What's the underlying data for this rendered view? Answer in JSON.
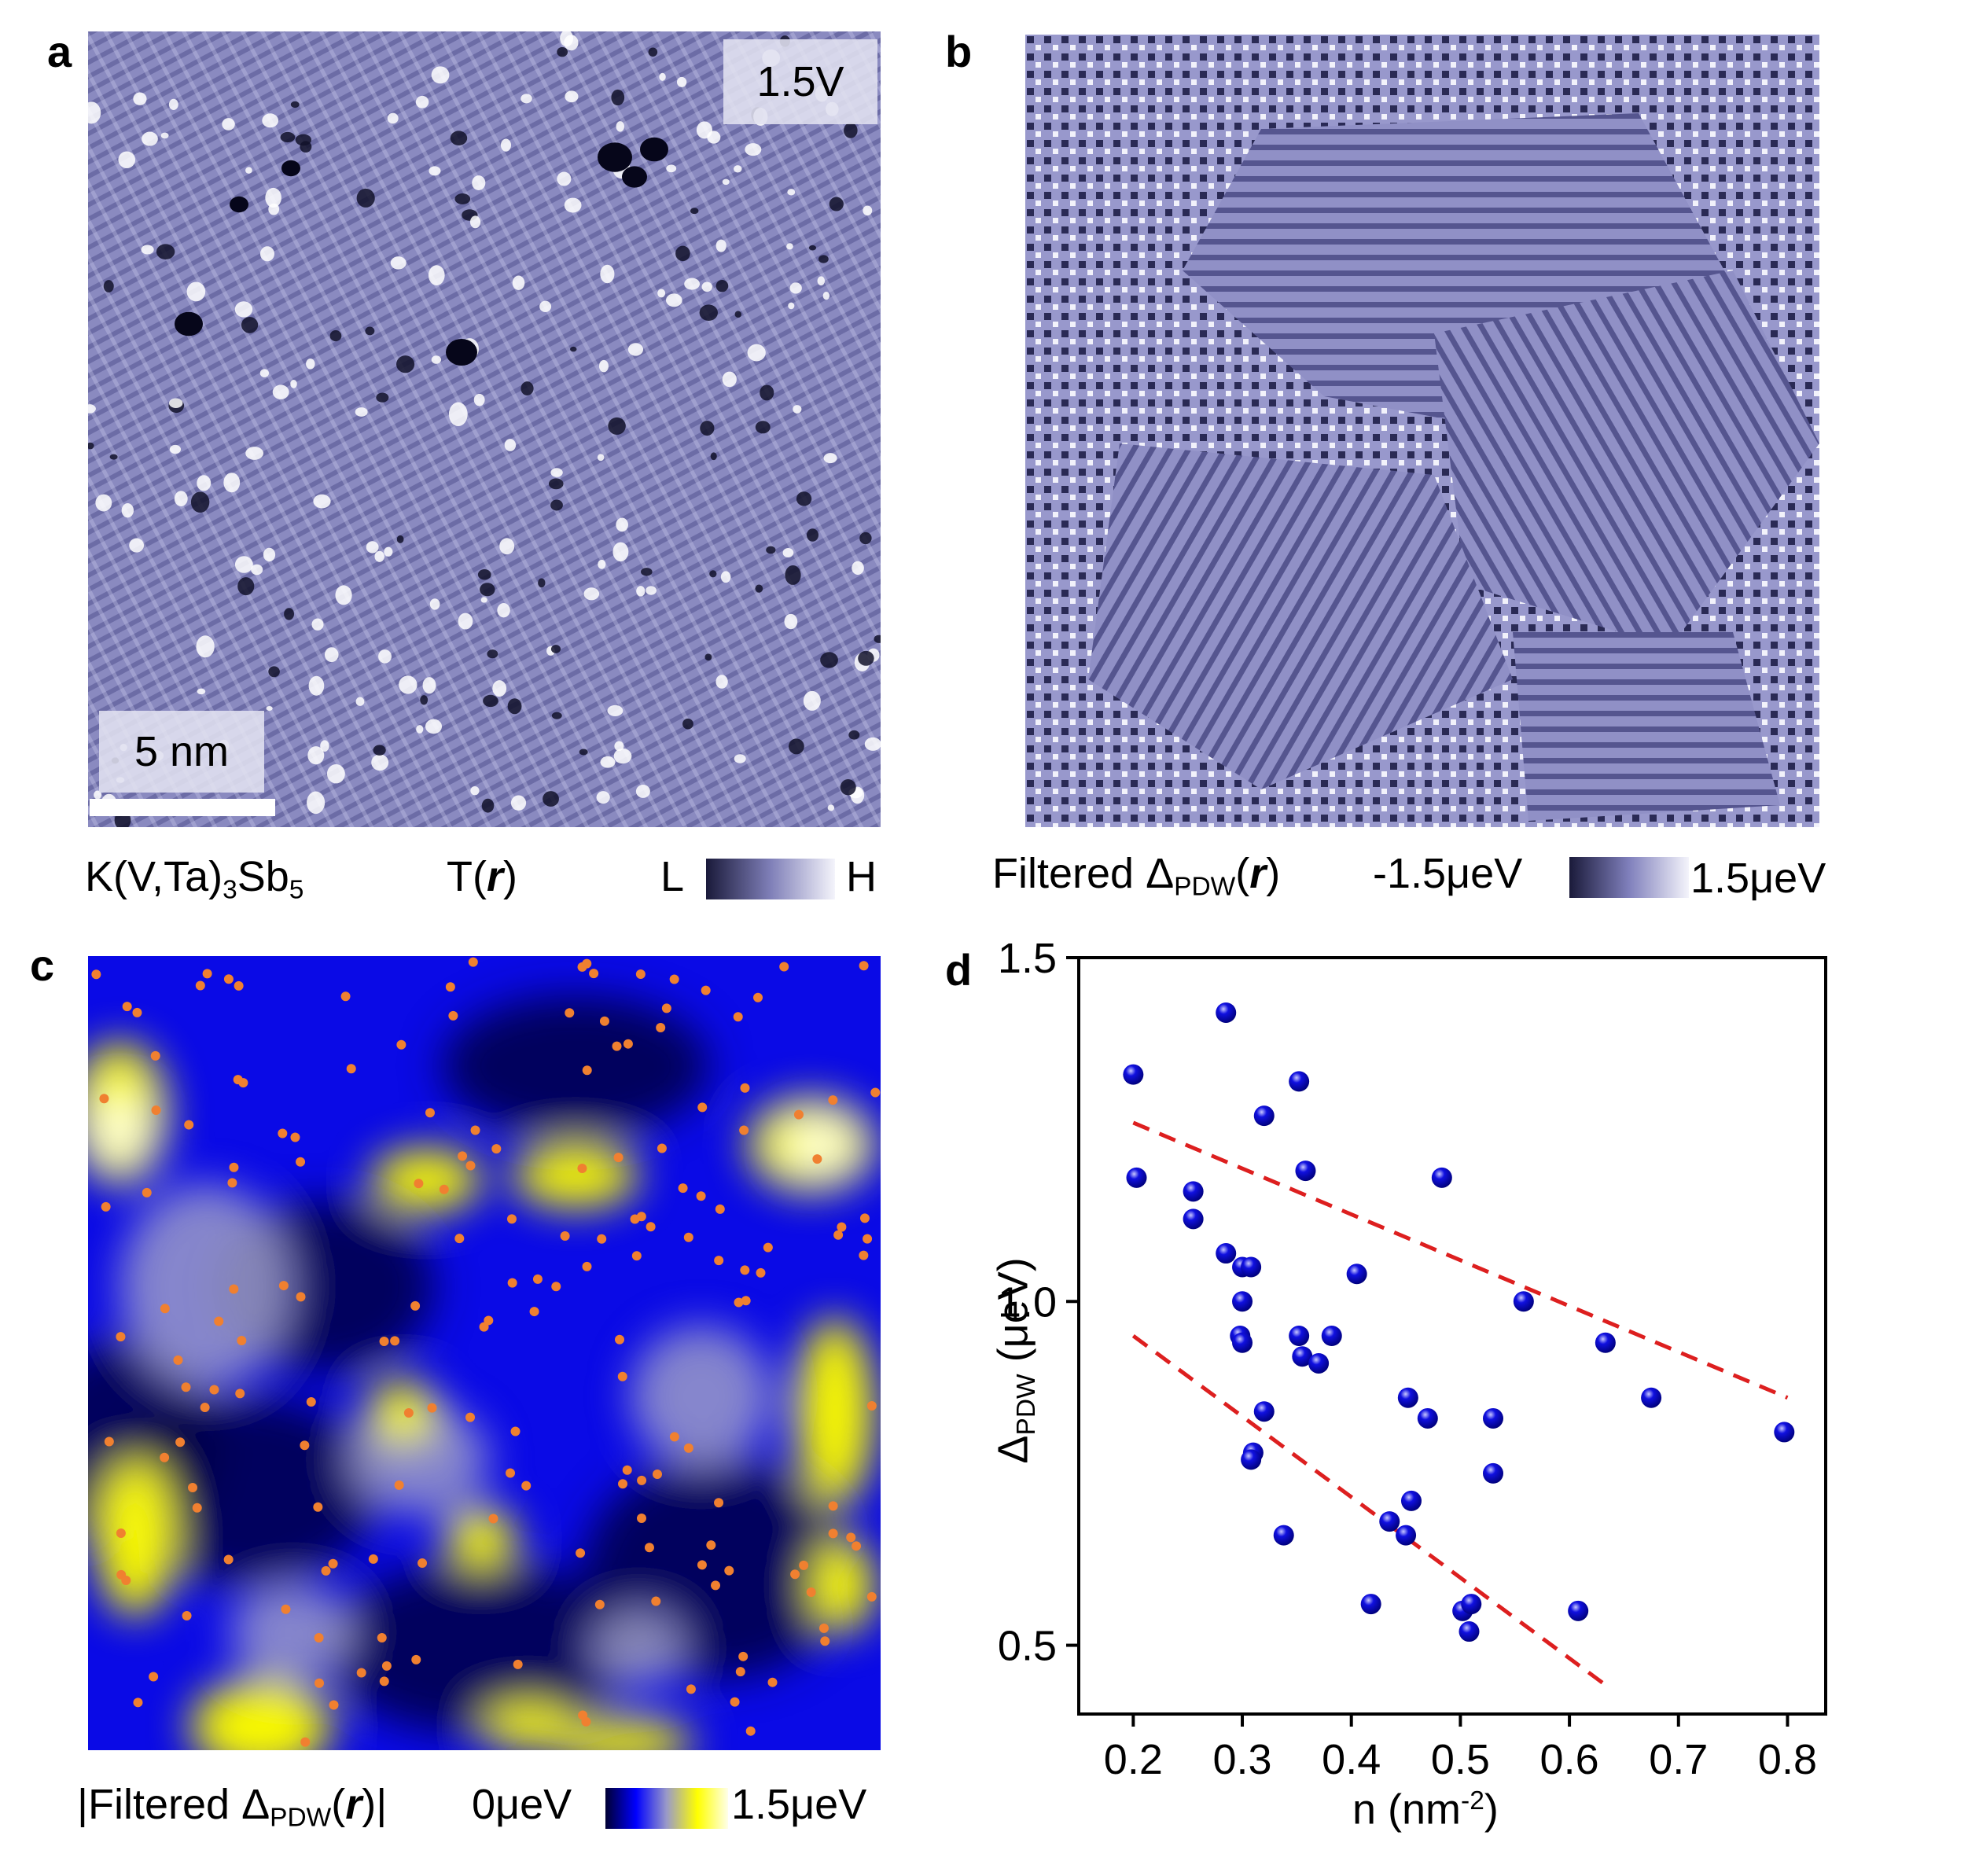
{
  "panel_a": {
    "letter": "a",
    "bias_label": "1.5V",
    "scale_label": "5 nm",
    "material_prefix": "K(V,Ta)",
    "material_sub1": "3",
    "material_mid": "Sb",
    "material_sub2": "5",
    "map_label_prefix": "T(",
    "map_label_var": "r",
    "map_label_suffix": ")",
    "colorbar_low": "L",
    "colorbar_high": "H",
    "colorbar_colors": [
      "#1a1a3a",
      "#7f7fb8",
      "#f4f4fb"
    ]
  },
  "panel_b": {
    "letter": "b",
    "label_prefix": "Filtered Δ",
    "label_sub": "PDW",
    "label_paren_open": "(",
    "label_var": "r",
    "label_paren_close": ")",
    "colorbar_low": "-1.5μeV",
    "colorbar_high": "1.5μeV",
    "colorbar_colors": [
      "#1a1a3a",
      "#8080bc",
      "#f4f4fb"
    ]
  },
  "panel_c": {
    "letter": "c",
    "label_prefix": "|Filtered Δ",
    "label_sub": "PDW",
    "label_paren_open": "(",
    "label_var": "r",
    "label_paren_close": ")|",
    "colorbar_low": "0μeV",
    "colorbar_high": "1.5μeV",
    "colorbar_colors": [
      "#000033",
      "#0000ff",
      "#9a9ac8",
      "#ffff00",
      "#ffffe8"
    ],
    "dot_color": "#f08030"
  },
  "chart_data": {
    "type": "scatter",
    "panel_letter": "d",
    "xlabel_main": "n (nm",
    "xlabel_sup": "-2",
    "xlabel_end": ")",
    "ylabel_main": "Δ",
    "ylabel_sub": "PDW",
    "ylabel_end": " (μeV)",
    "xlim": [
      0.15,
      0.835
    ],
    "ylim": [
      0.4,
      1.5
    ],
    "xticks": [
      0.2,
      0.3,
      0.4,
      0.5,
      0.6,
      0.7,
      0.8
    ],
    "xtick_labels": [
      "0.2",
      "0.3",
      "0.4",
      "0.5",
      "0.6",
      "0.7",
      "0.8"
    ],
    "yticks": [
      0.5,
      1.0,
      1.5
    ],
    "ytick_labels": [
      "0.5",
      "1.0",
      "1.5"
    ],
    "point_color": "#1010e0",
    "line_color": "#dd1f1f",
    "series": [
      {
        "points": [
          [
            0.2,
            1.33
          ],
          [
            0.203,
            1.18
          ],
          [
            0.285,
            1.42
          ],
          [
            0.255,
            1.16
          ],
          [
            0.255,
            1.12
          ],
          [
            0.285,
            1.07
          ],
          [
            0.3,
            1.05
          ],
          [
            0.308,
            1.05
          ],
          [
            0.3,
            1.0
          ],
          [
            0.298,
            0.95
          ],
          [
            0.3,
            0.94
          ],
          [
            0.32,
            1.27
          ],
          [
            0.352,
            1.32
          ],
          [
            0.358,
            1.19
          ],
          [
            0.352,
            0.95
          ],
          [
            0.355,
            0.92
          ],
          [
            0.37,
            0.91
          ],
          [
            0.382,
            0.95
          ],
          [
            0.405,
            1.04
          ],
          [
            0.483,
            1.18
          ],
          [
            0.32,
            0.84
          ],
          [
            0.31,
            0.78
          ],
          [
            0.308,
            0.77
          ],
          [
            0.338,
            0.66
          ],
          [
            0.435,
            0.68
          ],
          [
            0.452,
            0.86
          ],
          [
            0.47,
            0.83
          ],
          [
            0.455,
            0.71
          ],
          [
            0.45,
            0.66
          ],
          [
            0.418,
            0.56
          ],
          [
            0.502,
            0.55
          ],
          [
            0.51,
            0.56
          ],
          [
            0.508,
            0.52
          ],
          [
            0.53,
            0.83
          ],
          [
            0.53,
            0.75
          ],
          [
            0.558,
            1.0
          ],
          [
            0.608,
            0.55
          ],
          [
            0.633,
            0.94
          ],
          [
            0.675,
            0.86
          ],
          [
            0.797,
            0.81
          ]
        ]
      }
    ],
    "trend_lines": [
      {
        "x": [
          0.2,
          0.8
        ],
        "y": [
          1.26,
          0.86
        ]
      },
      {
        "x": [
          0.2,
          0.635
        ],
        "y": [
          0.95,
          0.44
        ]
      }
    ]
  }
}
